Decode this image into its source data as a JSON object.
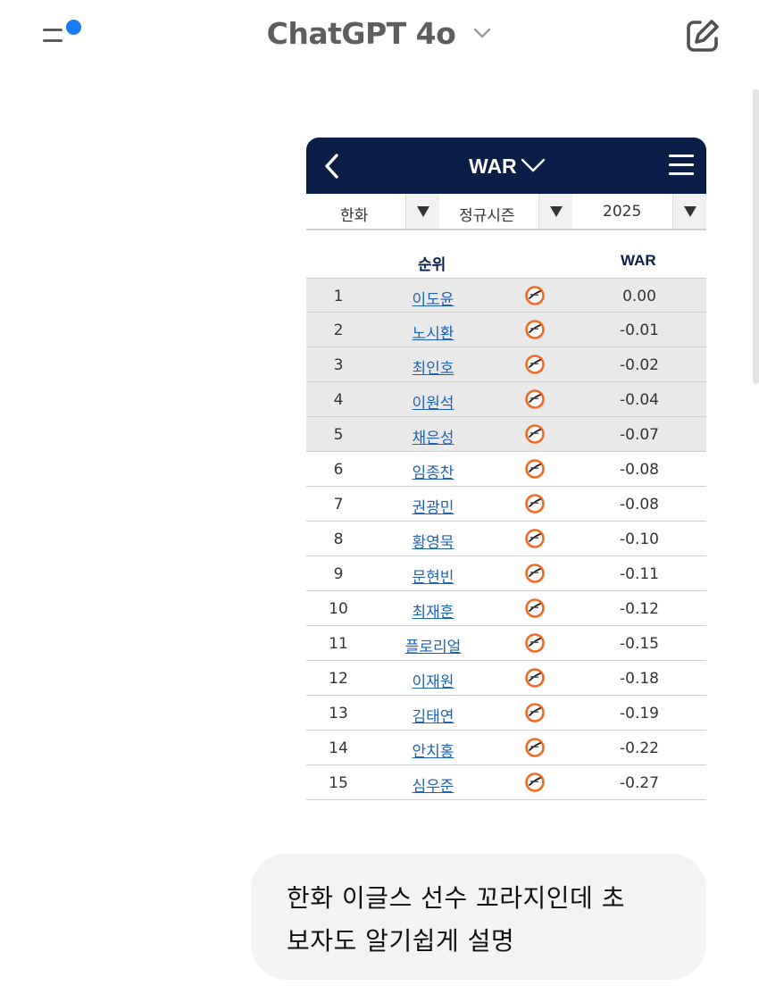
{
  "header": {
    "title": "ChatGPT 4o",
    "accent_color": "#1a7cf5",
    "icons": [
      "sidebar-menu-icon",
      "chevron-down-icon",
      "new-chat-edit-icon"
    ]
  },
  "screenshot": {
    "title": "WAR",
    "header_color": "#0b1e48",
    "filters": {
      "team": "한화",
      "season_type": "정규시즌",
      "year": "2025"
    },
    "columns": {
      "rank": "순위",
      "war": "WAR"
    },
    "rows": [
      {
        "rank": "1",
        "name": "이도윤",
        "war": "0.00"
      },
      {
        "rank": "2",
        "name": "노시환",
        "war": "-0.01"
      },
      {
        "rank": "3",
        "name": "최인호",
        "war": "-0.02"
      },
      {
        "rank": "4",
        "name": "이원석",
        "war": "-0.04"
      },
      {
        "rank": "5",
        "name": "채은성",
        "war": "-0.07"
      },
      {
        "rank": "6",
        "name": "임종찬",
        "war": "-0.08"
      },
      {
        "rank": "7",
        "name": "권광민",
        "war": "-0.08"
      },
      {
        "rank": "8",
        "name": "황영묵",
        "war": "-0.10"
      },
      {
        "rank": "9",
        "name": "문현빈",
        "war": "-0.11"
      },
      {
        "rank": "10",
        "name": "최재훈",
        "war": "-0.12"
      },
      {
        "rank": "11",
        "name": "플로리얼",
        "war": "-0.15"
      },
      {
        "rank": "12",
        "name": "이재원",
        "war": "-0.18"
      },
      {
        "rank": "13",
        "name": "김태연",
        "war": "-0.19"
      },
      {
        "rank": "14",
        "name": "안치홍",
        "war": "-0.22"
      },
      {
        "rank": "15",
        "name": "심우준",
        "war": "-0.27"
      }
    ],
    "highlighted_rows": 5,
    "team_logo_icon": "hanwha-eagles-logo-icon"
  },
  "message": {
    "line1": "한화 이글스 선수 꼬라지인데 초",
    "line2": "보자도 알기쉽게 설명"
  }
}
